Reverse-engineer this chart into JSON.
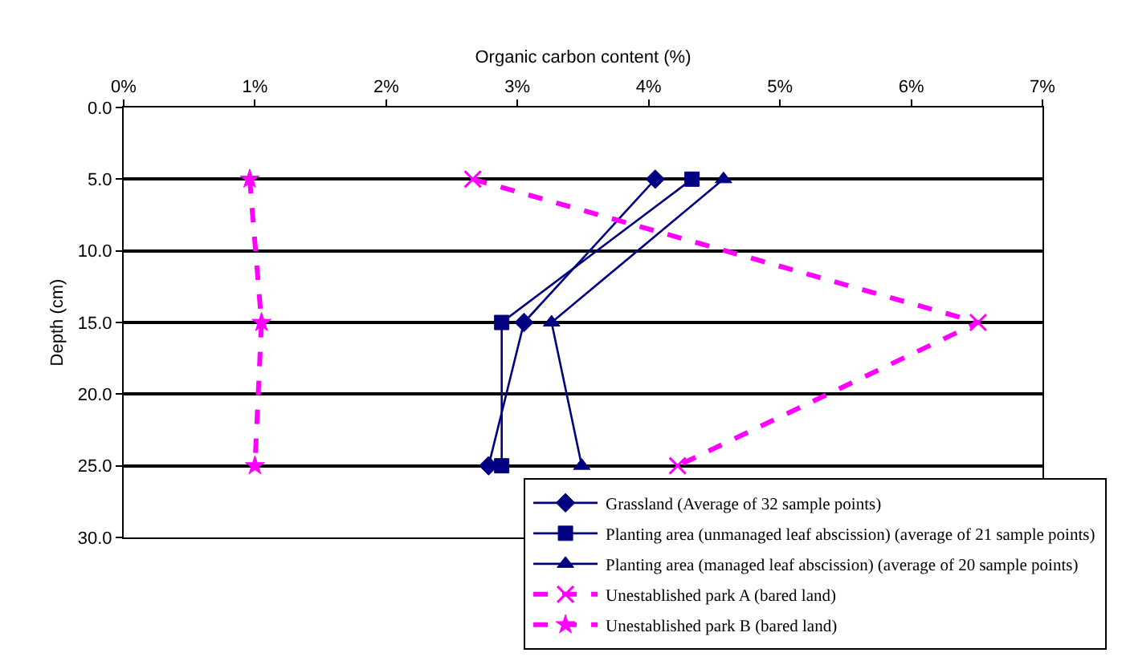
{
  "chart_data": {
    "type": "line",
    "xlabel": "Organic carbon content (%)",
    "ylabel": "Depth (cm)",
    "xlim": [
      0,
      7
    ],
    "xticks": [
      {
        "value": 0,
        "label": "0%"
      },
      {
        "value": 1,
        "label": "1%"
      },
      {
        "value": 2,
        "label": "2%"
      },
      {
        "value": 3,
        "label": "3%"
      },
      {
        "value": 4,
        "label": "4%"
      },
      {
        "value": 5,
        "label": "5%"
      },
      {
        "value": 6,
        "label": "6%"
      },
      {
        "value": 7,
        "label": "7%"
      }
    ],
    "ylim": [
      30,
      0
    ],
    "yticks": [
      {
        "value": 0,
        "label": "0.0"
      },
      {
        "value": 5,
        "label": "5.0"
      },
      {
        "value": 10,
        "label": "10.0"
      },
      {
        "value": 15,
        "label": "15.0"
      },
      {
        "value": 20,
        "label": "20.0"
      },
      {
        "value": 25,
        "label": "25.0"
      },
      {
        "value": 30,
        "label": "30.0"
      }
    ],
    "grid": "y",
    "legend": "bottom right",
    "series": [
      {
        "name": "Grassland (Average of 32 sample points)",
        "color": "#000080",
        "marker": "diamond",
        "line_style": "solid",
        "x": [
          4.05,
          3.05,
          2.78
        ],
        "values": [
          5,
          15,
          25
        ]
      },
      {
        "name": "Planting area (unmanaged leaf abscission) (average of 21 sample points)",
        "color": "#000080",
        "marker": "square",
        "line_style": "solid",
        "x": [
          4.33,
          2.88,
          2.88
        ],
        "values": [
          5,
          15,
          25
        ]
      },
      {
        "name": "Planting area (managed leaf abscission) (average of 20 sample points)",
        "color": "#000080",
        "marker": "triangle",
        "line_style": "solid",
        "x": [
          4.57,
          3.26,
          3.49
        ],
        "values": [
          5,
          15,
          25
        ]
      },
      {
        "name": "Unestablished park A (bared land)",
        "color": "#ff00ff",
        "marker": "cross",
        "line_style": "dashed",
        "x": [
          2.66,
          6.51,
          4.22
        ],
        "values": [
          5,
          15,
          25
        ]
      },
      {
        "name": "Unestablished park B (bared land)",
        "color": "#ff00ff",
        "marker": "star",
        "line_style": "dashed",
        "x": [
          0.96,
          1.05,
          1.0
        ],
        "values": [
          5,
          15,
          25
        ]
      }
    ]
  }
}
